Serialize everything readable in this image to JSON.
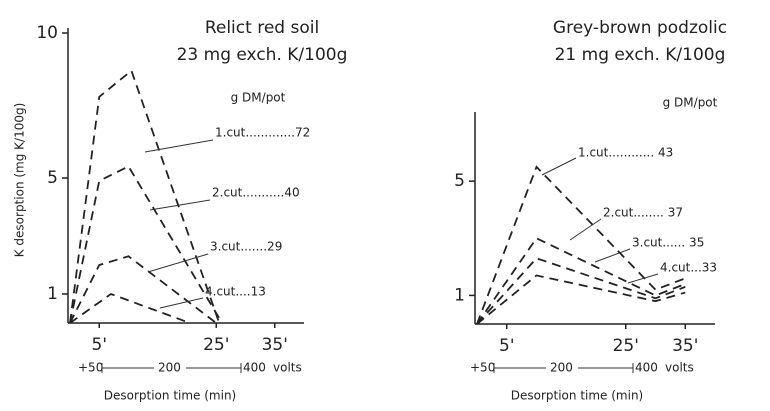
{
  "chart_data": [
    {
      "type": "line",
      "title": "Relict red soil",
      "subtitle": "23 mg exch. K/100g",
      "y_label": "K desorption  (mg K/100g)",
      "x_label": "Desorption  time (min)",
      "legend_title": "g DM/pot",
      "annotations": [
        "1.cut.............72",
        "2.cut...........40",
        "3.cut.......29",
        "4.cut....13"
      ],
      "voltage_scale": [
        "+50",
        "200",
        "400"
      ],
      "voltage_unit": "volts",
      "xlim": [
        0,
        40
      ],
      "ylim": [
        0,
        10
      ],
      "xticks": [
        {
          "value": 5,
          "label": "5'"
        },
        {
          "value": 25,
          "label": "25'"
        },
        {
          "value": 35,
          "label": "35'"
        }
      ],
      "yticks": [
        1,
        5,
        10
      ],
      "series": [
        {
          "color": "#222222",
          "x": [
            0,
            5,
            10.5,
            25.5
          ],
          "values": [
            0,
            7.8,
            8.7,
            0
          ]
        },
        {
          "color": "#222222",
          "x": [
            0,
            5,
            10,
            26
          ],
          "values": [
            0,
            4.9,
            5.4,
            0
          ]
        },
        {
          "color": "#222222",
          "x": [
            0,
            5,
            10,
            25
          ],
          "values": [
            0,
            2.0,
            2.3,
            0
          ]
        },
        {
          "color": "#222222",
          "x": [
            0,
            7,
            20.5
          ],
          "values": [
            0,
            1.0,
            0
          ]
        }
      ]
    },
    {
      "type": "line",
      "title": "Grey-brown podzolic",
      "subtitle": "21 mg exch. K/100g",
      "x_label": "Desorption  time (min)",
      "legend_title": "g DM/pot",
      "annotations": [
        "1.cut............ 43",
        "2.cut........ 37",
        "3.cut...... 35",
        "4.cut...33"
      ],
      "voltage_scale": [
        "+50",
        "200",
        "400"
      ],
      "voltage_unit": "volts",
      "xlim": [
        0,
        40
      ],
      "ylim": [
        0,
        7
      ],
      "xticks": [
        {
          "value": 5,
          "label": "5'"
        },
        {
          "value": 25,
          "label": "25'"
        },
        {
          "value": 35,
          "label": "35'"
        }
      ],
      "yticks": [
        1,
        5
      ],
      "series": [
        {
          "color": "#222222",
          "x": [
            0,
            10,
            30,
            35
          ],
          "values": [
            0,
            5.5,
            1.2,
            1.6
          ]
        },
        {
          "color": "#222222",
          "x": [
            0,
            10,
            30,
            35
          ],
          "values": [
            0,
            3.0,
            1.0,
            1.4
          ]
        },
        {
          "color": "#222222",
          "x": [
            0,
            10,
            30,
            35
          ],
          "values": [
            0,
            2.3,
            0.9,
            1.3
          ]
        },
        {
          "color": "#222222",
          "x": [
            0,
            10,
            30,
            35
          ],
          "values": [
            0,
            1.7,
            0.8,
            1.1
          ]
        }
      ]
    }
  ]
}
